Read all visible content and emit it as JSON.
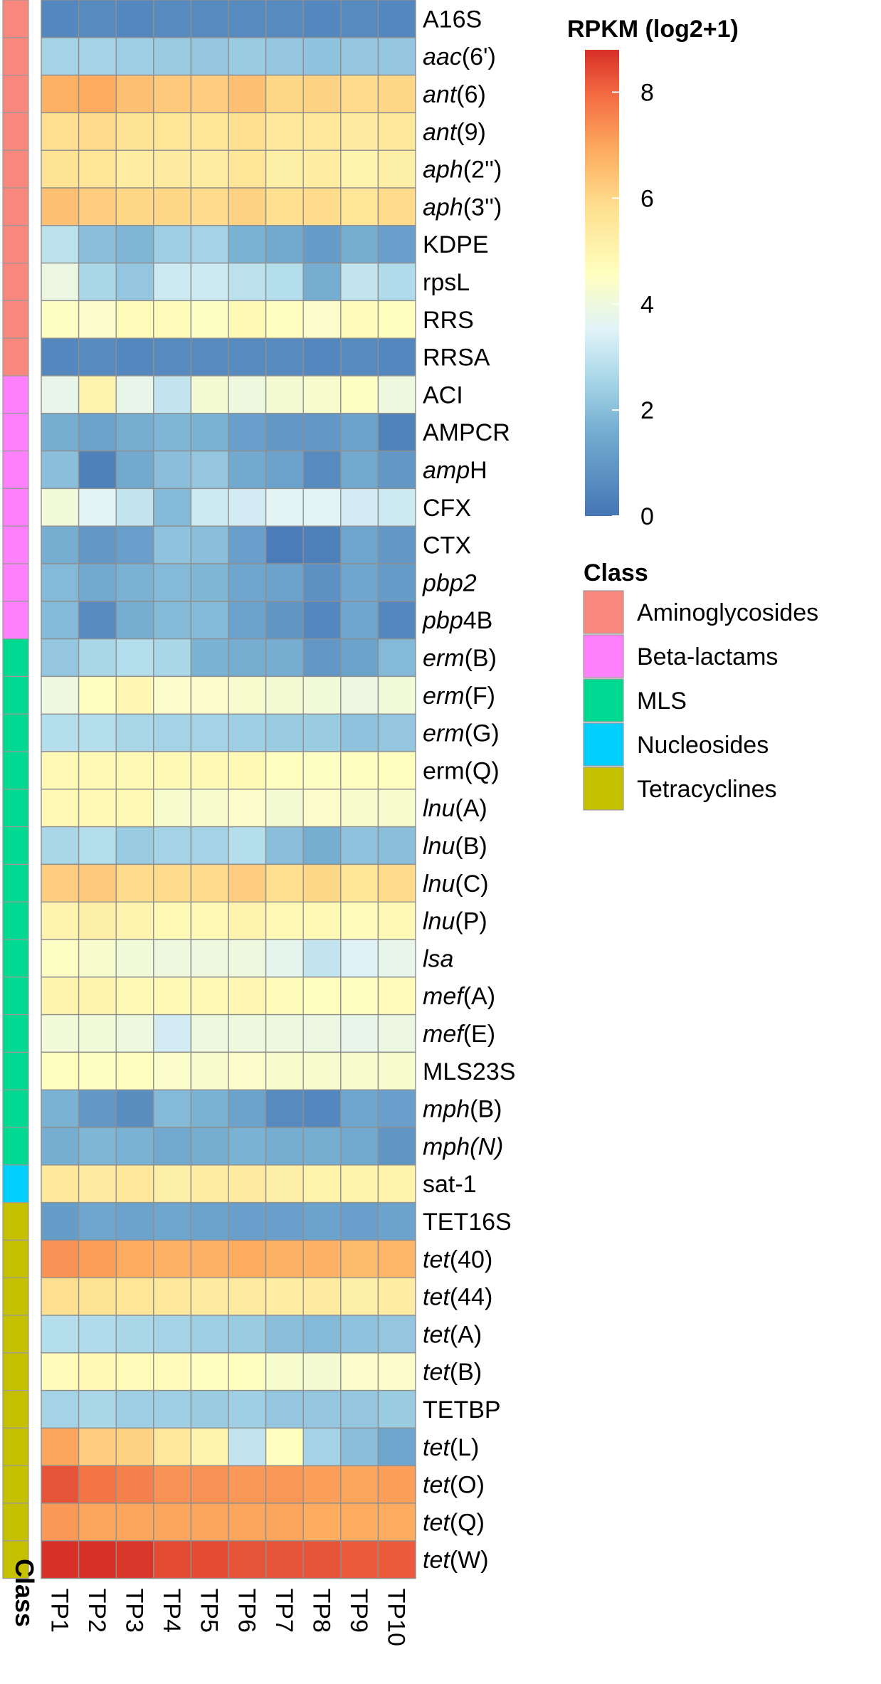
{
  "chart_data": {
    "type": "heatmap",
    "columns": [
      "TP1",
      "TP2",
      "TP3",
      "TP4",
      "TP5",
      "TP6",
      "TP7",
      "TP8",
      "TP9",
      "TP10"
    ],
    "class_axis_label": "Class",
    "colorbar": {
      "title": "RPKM (log2+1)",
      "range": [
        0,
        8.8
      ],
      "ticks": [
        0,
        2,
        4,
        6,
        8
      ]
    },
    "class_legend": {
      "title": "Class",
      "items": [
        {
          "name": "Aminoglycosides",
          "color": "#F8877E"
        },
        {
          "name": "Beta-lactams",
          "color": "#FF80FC"
        },
        {
          "name": "MLS",
          "color": "#00D991"
        },
        {
          "name": "Nucleosides",
          "color": "#00CFFC"
        },
        {
          "name": "Tetracyclines",
          "color": "#C5C000"
        }
      ]
    },
    "rows": [
      {
        "parts": [
          [
            "A16S",
            false
          ]
        ],
        "class": "Aminoglycosides",
        "values": [
          0.5,
          0.6,
          0.5,
          0.6,
          0.6,
          0.6,
          0.6,
          0.5,
          0.6,
          0.5
        ]
      },
      {
        "parts": [
          [
            "aac",
            true
          ],
          [
            "(6')",
            false
          ]
        ],
        "class": "Aminoglycosides",
        "values": [
          2.5,
          2.5,
          2.4,
          2.3,
          2.2,
          2.3,
          2.2,
          2.1,
          2.2,
          2.2
        ]
      },
      {
        "parts": [
          [
            "ant",
            true
          ],
          [
            "(6)",
            false
          ]
        ],
        "class": "Aminoglycosides",
        "values": [
          6.8,
          6.9,
          6.5,
          6.3,
          6.2,
          6.5,
          6.0,
          6.1,
          5.9,
          6.0
        ]
      },
      {
        "parts": [
          [
            "ant",
            true
          ],
          [
            "(9)",
            false
          ]
        ],
        "class": "Aminoglycosides",
        "values": [
          5.8,
          5.9,
          5.7,
          5.6,
          5.6,
          5.8,
          5.5,
          5.5,
          5.4,
          5.5
        ]
      },
      {
        "parts": [
          [
            "aph",
            true
          ],
          [
            "(2'')",
            false
          ]
        ],
        "class": "Aminoglycosides",
        "values": [
          5.7,
          5.6,
          5.3,
          5.4,
          5.3,
          5.6,
          5.2,
          5.3,
          5.0,
          5.2
        ]
      },
      {
        "parts": [
          [
            "aph",
            true
          ],
          [
            "(3'')",
            false
          ]
        ],
        "class": "Aminoglycosides",
        "values": [
          6.5,
          6.2,
          6.0,
          6.0,
          5.9,
          6.1,
          5.8,
          5.9,
          5.6,
          5.9
        ]
      },
      {
        "parts": [
          [
            "KDPE",
            false
          ]
        ],
        "class": "Aminoglycosides",
        "values": [
          2.9,
          2.0,
          1.8,
          2.4,
          2.5,
          1.7,
          1.5,
          1.1,
          1.6,
          1.2
        ]
      },
      {
        "parts": [
          [
            "rpsL",
            false
          ]
        ],
        "class": "Aminoglycosides",
        "values": [
          3.9,
          2.6,
          2.2,
          3.2,
          3.2,
          2.9,
          2.8,
          1.6,
          3.0,
          2.7
        ]
      },
      {
        "parts": [
          [
            "RRS",
            false
          ]
        ],
        "class": "Aminoglycosides",
        "values": [
          4.5,
          4.4,
          4.7,
          4.7,
          4.5,
          4.8,
          4.6,
          4.4,
          4.7,
          4.6
        ]
      },
      {
        "parts": [
          [
            "RRSA",
            false
          ]
        ],
        "class": "Aminoglycosides",
        "values": [
          0.5,
          0.6,
          0.5,
          0.6,
          0.6,
          0.6,
          0.6,
          0.5,
          0.6,
          0.5
        ]
      },
      {
        "parts": [
          [
            "ACI",
            false
          ]
        ],
        "class": "Beta-lactams",
        "values": [
          3.8,
          5.0,
          3.8,
          3.0,
          4.2,
          4.0,
          4.2,
          4.3,
          4.5,
          4.0
        ]
      },
      {
        "parts": [
          [
            "AMPCR",
            false
          ]
        ],
        "class": "Beta-lactams",
        "values": [
          1.6,
          1.3,
          1.6,
          1.8,
          1.7,
          1.2,
          1.0,
          1.0,
          1.3,
          0.4
        ]
      },
      {
        "parts": [
          [
            "amp",
            true
          ],
          [
            "H",
            false
          ]
        ],
        "class": "Beta-lactams",
        "values": [
          2.0,
          0.3,
          1.5,
          2.0,
          2.2,
          1.5,
          1.3,
          0.6,
          1.5,
          1.0
        ]
      },
      {
        "parts": [
          [
            "CFX",
            false
          ]
        ],
        "class": "Beta-lactams",
        "values": [
          4.1,
          3.6,
          3.0,
          1.9,
          3.2,
          3.3,
          3.6,
          3.6,
          3.3,
          3.2
        ]
      },
      {
        "parts": [
          [
            "CTX",
            false
          ]
        ],
        "class": "Beta-lactams",
        "values": [
          1.6,
          1.0,
          1.2,
          2.1,
          2.0,
          1.2,
          0.2,
          0.3,
          1.4,
          1.0
        ]
      },
      {
        "parts": [
          [
            "pbp",
            true
          ],
          [
            "2",
            true
          ]
        ],
        "class": "Beta-lactams",
        "values": [
          1.9,
          1.5,
          1.7,
          1.9,
          1.8,
          1.4,
          1.3,
          0.8,
          1.4,
          1.1
        ]
      },
      {
        "parts": [
          [
            "pbp",
            true
          ],
          [
            "4B",
            false
          ]
        ],
        "class": "Beta-lactams",
        "values": [
          1.9,
          0.6,
          1.6,
          1.9,
          1.9,
          1.3,
          0.9,
          0.5,
          1.4,
          0.5
        ]
      },
      {
        "parts": [
          [
            "erm",
            true
          ],
          [
            "(B)",
            false
          ]
        ],
        "class": "MLS",
        "values": [
          2.2,
          2.6,
          2.8,
          2.6,
          1.7,
          1.6,
          1.6,
          1.0,
          1.3,
          1.9
        ]
      },
      {
        "parts": [
          [
            "erm",
            true
          ],
          [
            "(F)",
            false
          ]
        ],
        "class": "MLS",
        "values": [
          4.0,
          4.6,
          4.9,
          4.4,
          4.4,
          4.3,
          4.2,
          4.1,
          3.9,
          4.1
        ]
      },
      {
        "parts": [
          [
            "erm",
            true
          ],
          [
            "(G)",
            false
          ]
        ],
        "class": "MLS",
        "values": [
          2.8,
          2.8,
          2.6,
          2.5,
          2.5,
          2.4,
          2.3,
          2.3,
          2.1,
          2.2
        ]
      },
      {
        "parts": [
          [
            "erm(Q)",
            false
          ]
        ],
        "class": "MLS",
        "values": [
          4.8,
          4.8,
          4.8,
          4.8,
          4.8,
          4.8,
          4.6,
          4.5,
          4.6,
          4.6
        ]
      },
      {
        "parts": [
          [
            "lnu",
            true
          ],
          [
            "(A)",
            false
          ]
        ],
        "class": "MLS",
        "values": [
          4.8,
          4.8,
          4.8,
          4.3,
          4.3,
          4.4,
          4.2,
          4.4,
          4.3,
          4.3
        ]
      },
      {
        "parts": [
          [
            "lnu",
            true
          ],
          [
            "(B)",
            false
          ]
        ],
        "class": "MLS",
        "values": [
          2.6,
          2.8,
          2.3,
          2.5,
          2.5,
          2.8,
          2.0,
          1.6,
          2.1,
          2.0
        ]
      },
      {
        "parts": [
          [
            "lnu",
            true
          ],
          [
            "(C)",
            false
          ]
        ],
        "class": "MLS",
        "values": [
          6.2,
          6.3,
          5.9,
          5.9,
          5.9,
          6.2,
          5.8,
          6.0,
          5.6,
          5.9
        ]
      },
      {
        "parts": [
          [
            "lnu",
            true
          ],
          [
            "(P)",
            false
          ]
        ],
        "class": "MLS",
        "values": [
          5.0,
          5.2,
          5.0,
          4.8,
          4.8,
          5.0,
          4.8,
          4.8,
          4.7,
          4.8
        ]
      },
      {
        "parts": [
          [
            "lsa",
            true
          ]
        ],
        "class": "MLS",
        "values": [
          4.5,
          4.3,
          4.1,
          4.0,
          4.0,
          4.0,
          3.7,
          3.0,
          3.5,
          3.8
        ]
      },
      {
        "parts": [
          [
            "mef",
            true
          ],
          [
            "(A)",
            false
          ]
        ],
        "class": "MLS",
        "values": [
          5.0,
          5.0,
          4.8,
          4.8,
          4.8,
          4.9,
          4.7,
          4.6,
          4.6,
          4.7
        ]
      },
      {
        "parts": [
          [
            "mef",
            true
          ],
          [
            "(E)",
            false
          ]
        ],
        "class": "MLS",
        "values": [
          4.1,
          4.1,
          4.0,
          3.3,
          4.0,
          4.0,
          4.0,
          3.9,
          3.8,
          3.9
        ]
      },
      {
        "parts": [
          [
            "MLS23S",
            false
          ]
        ],
        "class": "MLS",
        "values": [
          4.6,
          4.5,
          4.6,
          4.4,
          4.3,
          4.4,
          4.3,
          4.3,
          4.3,
          4.3
        ]
      },
      {
        "parts": [
          [
            "mph",
            true
          ],
          [
            "(B)",
            false
          ]
        ],
        "class": "MLS",
        "values": [
          1.7,
          1.0,
          0.7,
          1.9,
          1.7,
          1.3,
          0.6,
          0.5,
          1.4,
          1.2
        ]
      },
      {
        "parts": [
          [
            "mph",
            true
          ],
          [
            "(N)",
            true
          ]
        ],
        "class": "MLS",
        "values": [
          1.6,
          1.8,
          1.7,
          1.5,
          1.6,
          1.7,
          1.6,
          1.6,
          1.5,
          0.9
        ]
      },
      {
        "parts": [
          [
            "sat-1",
            false
          ]
        ],
        "class": "Nucleosides",
        "values": [
          5.5,
          5.4,
          5.5,
          5.2,
          5.3,
          5.4,
          5.2,
          5.1,
          5.1,
          5.1
        ]
      },
      {
        "parts": [
          [
            "TET16S",
            false
          ]
        ],
        "class": "Tetracyclines",
        "values": [
          1.1,
          1.4,
          1.3,
          1.4,
          1.3,
          1.2,
          1.2,
          1.3,
          1.2,
          1.3
        ]
      },
      {
        "parts": [
          [
            "tet",
            true
          ],
          [
            "(40)",
            false
          ]
        ],
        "class": "Tetracyclines",
        "values": [
          7.3,
          7.1,
          6.9,
          6.8,
          6.8,
          6.9,
          6.8,
          6.8,
          6.6,
          6.7
        ]
      },
      {
        "parts": [
          [
            "tet",
            true
          ],
          [
            "(44)",
            false
          ]
        ],
        "class": "Tetracyclines",
        "values": [
          5.8,
          5.7,
          5.6,
          5.5,
          5.4,
          5.4,
          5.3,
          5.4,
          5.2,
          5.3
        ]
      },
      {
        "parts": [
          [
            "tet",
            true
          ],
          [
            "(A)",
            false
          ]
        ],
        "class": "Tetracyclines",
        "values": [
          2.8,
          2.7,
          2.6,
          2.5,
          2.4,
          2.3,
          2.0,
          1.9,
          2.1,
          2.2
        ]
      },
      {
        "parts": [
          [
            "tet",
            true
          ],
          [
            "(B)",
            false
          ]
        ],
        "class": "Tetracyclines",
        "values": [
          4.7,
          4.8,
          4.7,
          4.7,
          4.6,
          4.6,
          4.3,
          4.2,
          4.4,
          4.4
        ]
      },
      {
        "parts": [
          [
            "TETBP",
            false
          ]
        ],
        "class": "Tetracyclines",
        "values": [
          2.5,
          2.6,
          2.4,
          2.4,
          2.3,
          2.4,
          2.2,
          2.2,
          2.2,
          2.3
        ]
      },
      {
        "parts": [
          [
            "tet",
            true
          ],
          [
            "(L)",
            false
          ]
        ],
        "class": "Tetracyclines",
        "values": [
          7.0,
          6.2,
          6.1,
          5.5,
          5.0,
          3.0,
          4.6,
          2.5,
          2.0,
          1.4
        ]
      },
      {
        "parts": [
          [
            "tet",
            true
          ],
          [
            "(O)",
            false
          ]
        ],
        "class": "Tetracyclines",
        "values": [
          8.3,
          7.8,
          7.6,
          7.3,
          7.3,
          7.2,
          7.2,
          7.1,
          7.0,
          7.1
        ]
      },
      {
        "parts": [
          [
            "tet",
            true
          ],
          [
            "(Q)",
            false
          ]
        ],
        "class": "Tetracyclines",
        "values": [
          7.2,
          7.0,
          7.0,
          7.0,
          7.0,
          7.0,
          7.0,
          6.9,
          6.9,
          6.9
        ]
      },
      {
        "parts": [
          [
            "tet",
            true
          ],
          [
            "(W)",
            false
          ]
        ],
        "class": "Tetracyclines",
        "values": [
          8.9,
          8.8,
          8.7,
          8.4,
          8.4,
          8.3,
          8.3,
          8.3,
          8.2,
          8.2
        ]
      }
    ]
  }
}
